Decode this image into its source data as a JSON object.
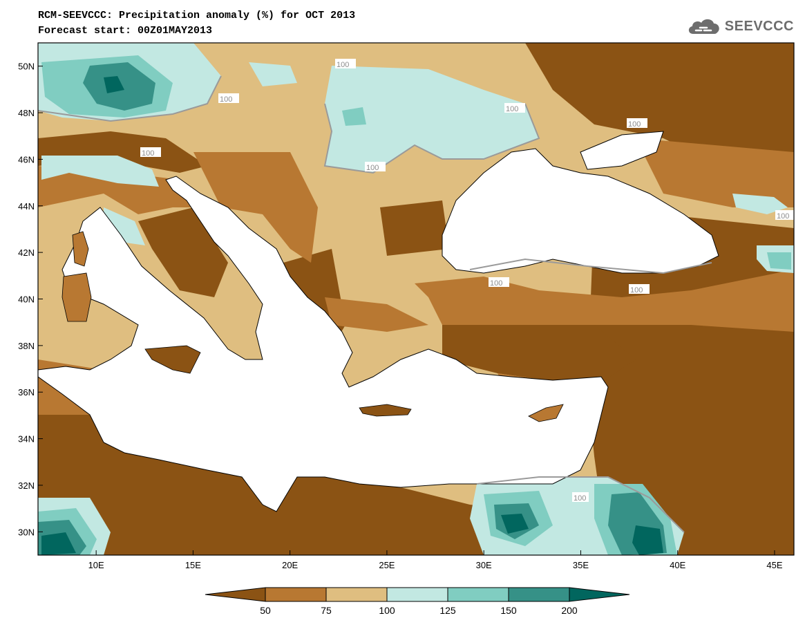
{
  "title_line1": "RCM-SEEVCCC: Precipitation anomaly (%) for OCT 2013",
  "title_line2": "Forecast start: 00Z01MAY2013",
  "logo_text": "SEEVCCC",
  "logo_icon": "cloud-icon",
  "map": {
    "lon_range": [
      7,
      46
    ],
    "lat_range": [
      29,
      51
    ],
    "lat_ticks": [
      "50N",
      "48N",
      "46N",
      "44N",
      "42N",
      "40N",
      "38N",
      "36N",
      "34N",
      "32N",
      "30N"
    ],
    "lon_ticks": [
      "10E",
      "15E",
      "20E",
      "25E",
      "30E",
      "35E",
      "40E",
      "45E"
    ],
    "contour_label": "100"
  },
  "legend": {
    "labels": [
      "50",
      "75",
      "100",
      "125",
      "150",
      "200"
    ],
    "colors": [
      "#8b5314",
      "#b87832",
      "#dfbe80",
      "#c2e8e2",
      "#80cdc1",
      "#369187",
      "#01665e"
    ]
  },
  "colors": {
    "land_dry1": "#8b5314",
    "land_dry2": "#b87832",
    "land_dry3": "#dfbe80",
    "land_wet1": "#c2e8e2",
    "land_wet2": "#80cdc1",
    "land_wet3": "#369187",
    "sea": "#ffffff",
    "contour": "#9a9a9a"
  }
}
